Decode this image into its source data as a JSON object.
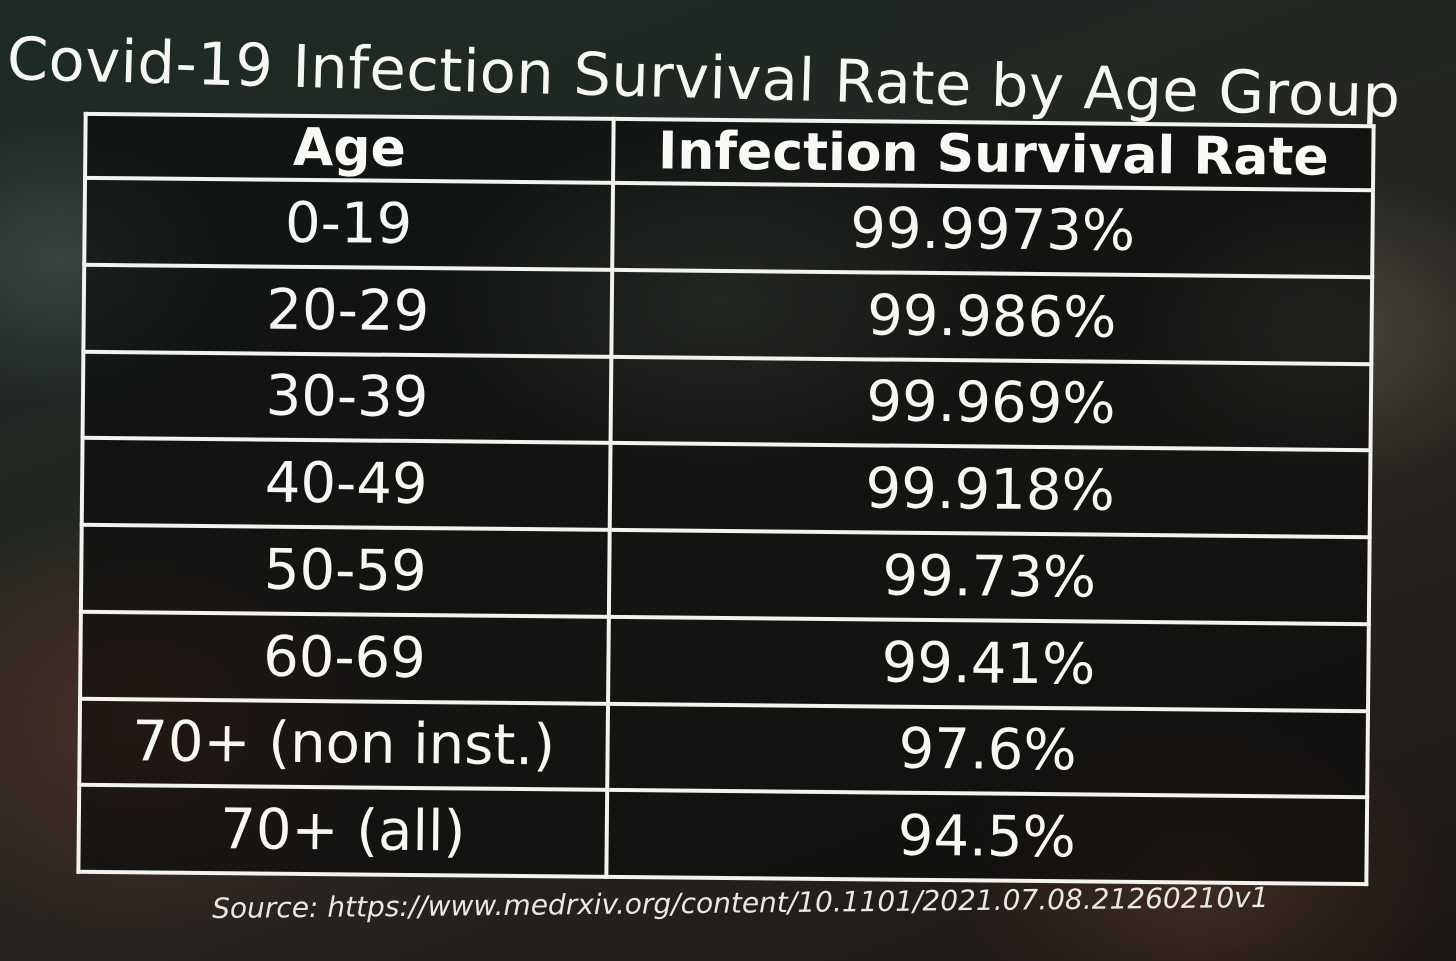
{
  "title": "Covid-19 Infection Survival Rate by Age Group",
  "table": {
    "headers": [
      "Age",
      "Infection Survival Rate"
    ],
    "rows": [
      {
        "age": "0-19",
        "rate": "99.9973%"
      },
      {
        "age": "20-29",
        "rate": "99.986%"
      },
      {
        "age": "30-39",
        "rate": "99.969%"
      },
      {
        "age": "40-49",
        "rate": "99.918%"
      },
      {
        "age": "50-59",
        "rate": "99.73%"
      },
      {
        "age": "60-69",
        "rate": "99.41%"
      },
      {
        "age": "70+ (non inst.)",
        "rate": "97.6%"
      },
      {
        "age": "70+ (all)",
        "rate": "94.5%"
      }
    ]
  },
  "source": "Source: https://www.medrxiv.org/content/10.1101/2021.07.08.21260210v1"
}
